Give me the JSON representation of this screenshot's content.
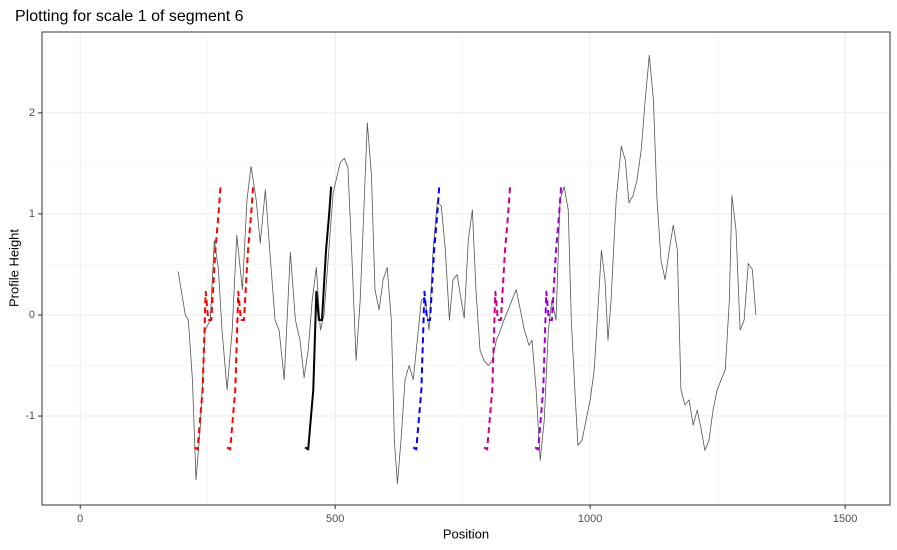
{
  "chart_data": {
    "type": "line",
    "title": "Plotting for scale 1 of segment 6",
    "x_label": "Position",
    "y_label": "Profile Height",
    "xlim": [
      -75,
      1588
    ],
    "ylim": [
      -1.88,
      2.8
    ],
    "xticks": [
      0,
      500,
      1000,
      1500
    ],
    "yticks": [
      -1,
      0,
      1,
      2
    ],
    "grid": true,
    "series": [
      {
        "color": "#555555",
        "dash": false,
        "width": 0.8,
        "x": [
          192,
          206,
          212,
          220,
          227,
          235,
          245,
          255,
          263,
          271,
          278,
          288,
          298,
          307,
          318,
          327,
          335,
          345,
          353,
          363,
          373,
          382,
          390,
          400,
          412,
          422,
          431,
          439,
          447,
          455,
          463,
          471,
          478,
          486,
          496,
          510,
          518,
          525,
          533,
          541,
          549,
          557,
          563,
          571,
          578,
          586,
          594,
          602,
          610,
          616,
          622,
          629,
          637,
          645,
          653,
          661,
          669,
          676,
          684,
          692,
          700,
          708,
          716,
          724,
          731,
          739,
          747,
          753,
          761,
          769,
          776,
          784,
          792,
          800,
          808,
          816,
          824,
          831,
          839,
          847,
          855,
          863,
          871,
          880,
          886,
          894,
          902,
          910,
          918,
          925,
          933,
          941,
          949,
          957,
          963,
          971,
          976,
          984,
          992,
          1000,
          1008,
          1014,
          1022,
          1029,
          1035,
          1041,
          1051,
          1061,
          1069,
          1076,
          1084,
          1092,
          1100,
          1108,
          1116,
          1124,
          1131,
          1139,
          1147,
          1155,
          1163,
          1171,
          1178,
          1186,
          1194,
          1202,
          1210,
          1218,
          1225,
          1233,
          1241,
          1249,
          1257,
          1265,
          1273,
          1278,
          1286,
          1294,
          1302,
          1310,
          1318,
          1325
        ],
        "values": [
          0.43,
          0.0,
          -0.05,
          -0.64,
          -1.63,
          -1.14,
          -0.15,
          -0.05,
          0.74,
          0.45,
          -0.15,
          -0.74,
          -0.15,
          0.79,
          0.25,
          1.14,
          1.47,
          1.14,
          0.71,
          1.24,
          0.55,
          -0.05,
          -0.15,
          -0.64,
          0.62,
          -0.05,
          -0.25,
          -0.62,
          -0.35,
          0.15,
          0.47,
          -0.15,
          0.0,
          0.54,
          1.21,
          1.51,
          1.55,
          1.46,
          0.54,
          -0.45,
          0.15,
          1.14,
          1.9,
          1.39,
          0.25,
          0.05,
          0.35,
          0.47,
          -0.05,
          -1.24,
          -1.67,
          -1.24,
          -0.64,
          -0.5,
          -0.64,
          -0.25,
          0.15,
          0.17,
          -0.15,
          0.64,
          1.11,
          1.08,
          0.64,
          -0.05,
          0.35,
          0.4,
          0.15,
          -0.03,
          0.74,
          1.04,
          0.25,
          -0.35,
          -0.45,
          -0.5,
          -0.45,
          -0.25,
          -0.15,
          -0.05,
          0.05,
          0.15,
          0.25,
          0.05,
          -0.15,
          -0.3,
          -0.25,
          -0.74,
          -1.44,
          -1.04,
          -0.15,
          0.15,
          -0.05,
          1.14,
          1.27,
          1.04,
          -0.05,
          -0.84,
          -1.29,
          -1.24,
          -1.04,
          -0.84,
          -0.54,
          -0.05,
          0.64,
          0.35,
          -0.25,
          0.15,
          1.14,
          1.67,
          1.53,
          1.11,
          1.18,
          1.34,
          1.63,
          2.13,
          2.57,
          2.13,
          1.14,
          0.54,
          0.35,
          0.64,
          0.89,
          0.64,
          -0.74,
          -0.89,
          -0.84,
          -1.09,
          -0.94,
          -1.14,
          -1.34,
          -1.24,
          -0.94,
          -0.74,
          -0.64,
          -0.54,
          0.15,
          1.18,
          0.84,
          -0.15,
          -0.05,
          0.51,
          0.45,
          0.0
        ]
      },
      {
        "color": "#ff0000",
        "dash": true,
        "width": 2,
        "x": [
          224,
          230,
          240,
          246,
          251,
          257,
          265,
          271,
          275
        ],
        "values": [
          -1.31,
          -1.33,
          -0.74,
          0.23,
          -0.05,
          -0.05,
          0.64,
          0.99,
          1.27
        ]
      },
      {
        "color": "#ff0000",
        "dash": true,
        "width": 2,
        "x": [
          288,
          294,
          304,
          310,
          315,
          321,
          329,
          335,
          339
        ],
        "values": [
          -1.31,
          -1.33,
          -0.74,
          0.23,
          -0.05,
          -0.05,
          0.64,
          0.99,
          1.27
        ]
      },
      {
        "color": "#000000",
        "dash": false,
        "width": 2,
        "x": [
          441,
          447,
          457,
          463,
          468,
          474,
          482,
          488,
          492
        ],
        "values": [
          -1.31,
          -1.33,
          -0.74,
          0.23,
          -0.05,
          -0.05,
          0.64,
          0.99,
          1.27
        ]
      },
      {
        "color": "#0000ff",
        "dash": true,
        "width": 2,
        "x": [
          653,
          659,
          669,
          675,
          680,
          686,
          694,
          700,
          704
        ],
        "values": [
          -1.31,
          -1.33,
          -0.74,
          0.23,
          -0.05,
          -0.05,
          0.64,
          0.99,
          1.27
        ]
      },
      {
        "color": "#cc0088",
        "dash": true,
        "width": 2,
        "x": [
          792,
          798,
          808,
          814,
          819,
          825,
          833,
          839,
          843
        ],
        "values": [
          -1.31,
          -1.33,
          -0.74,
          0.23,
          -0.05,
          -0.05,
          0.64,
          0.99,
          1.27
        ]
      },
      {
        "color": "#9900cc",
        "dash": true,
        "width": 2,
        "x": [
          892,
          898,
          908,
          914,
          919,
          925,
          933,
          939,
          943
        ],
        "values": [
          -1.31,
          -1.33,
          -0.74,
          0.23,
          -0.05,
          -0.05,
          0.64,
          0.99,
          1.27
        ]
      }
    ]
  }
}
